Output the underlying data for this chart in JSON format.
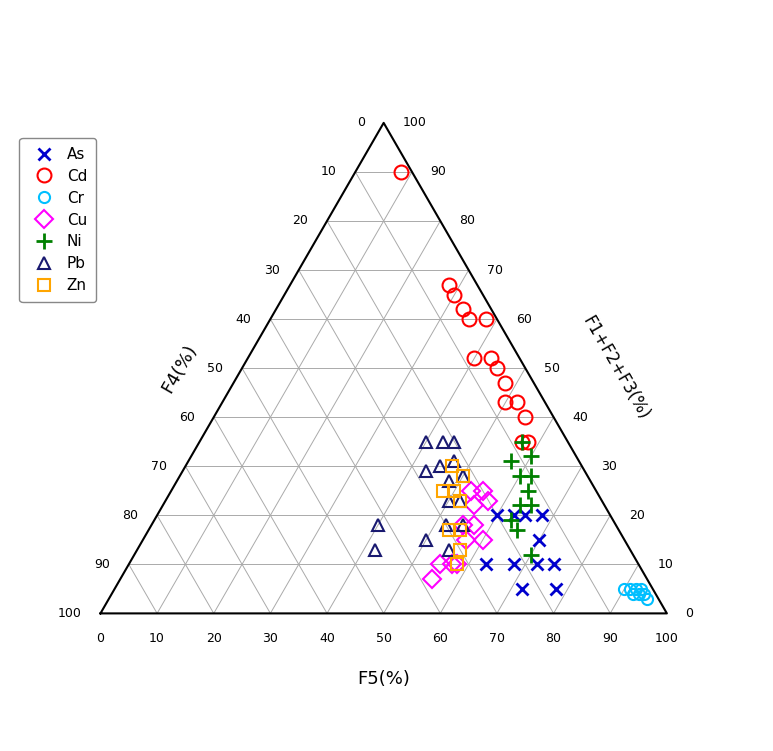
{
  "axes_labels": {
    "bottom": "F5(%)",
    "left": "F4(%)",
    "right": "F1+F2+F3(%)"
  },
  "metals": {
    "As": {
      "color": "#0000CD",
      "marker": "x",
      "markersize": 9,
      "linewidth": 2.0,
      "data": [
        [
          60,
          20,
          20
        ],
        [
          63,
          17,
          20
        ],
        [
          65,
          15,
          20
        ],
        [
          68,
          12,
          20
        ],
        [
          70,
          15,
          15
        ],
        [
          72,
          18,
          10
        ],
        [
          75,
          15,
          10
        ],
        [
          63,
          27,
          10
        ],
        [
          68,
          22,
          10
        ],
        [
          72,
          23,
          5
        ],
        [
          78,
          17,
          5
        ]
      ]
    },
    "Cd": {
      "color": "#FF0000",
      "marker": "o",
      "markersize": 10,
      "linewidth": 1.5,
      "data": [
        [
          8,
          2,
          90
        ],
        [
          28,
          5,
          67
        ],
        [
          30,
          5,
          65
        ],
        [
          33,
          5,
          62
        ],
        [
          35,
          5,
          60
        ],
        [
          38,
          2,
          60
        ],
        [
          40,
          8,
          52
        ],
        [
          43,
          5,
          52
        ],
        [
          45,
          5,
          50
        ],
        [
          48,
          5,
          47
        ],
        [
          50,
          7,
          43
        ],
        [
          52,
          5,
          43
        ],
        [
          55,
          5,
          40
        ],
        [
          57,
          8,
          35
        ],
        [
          58,
          7,
          35
        ]
      ]
    },
    "Cr": {
      "color": "#00BFFF",
      "marker": "o",
      "markersize": 8,
      "linewidth": 1.5,
      "data": [
        [
          90,
          5,
          5
        ],
        [
          91,
          4,
          5
        ],
        [
          92,
          3,
          5
        ],
        [
          92,
          4,
          4
        ],
        [
          93,
          3,
          4
        ],
        [
          93,
          2,
          5
        ],
        [
          94,
          2,
          4
        ],
        [
          95,
          2,
          3
        ]
      ]
    },
    "Cu": {
      "color": "#FF00FF",
      "marker": "D",
      "markersize": 9,
      "linewidth": 1.5,
      "data": [
        [
          53,
          22,
          25
        ],
        [
          55,
          20,
          25
        ],
        [
          55,
          23,
          22
        ],
        [
          57,
          20,
          23
        ],
        [
          55,
          27,
          18
        ],
        [
          57,
          25,
          18
        ],
        [
          57,
          28,
          15
        ],
        [
          60,
          25,
          15
        ],
        [
          55,
          35,
          10
        ],
        [
          57,
          33,
          10
        ],
        [
          58,
          32,
          10
        ],
        [
          55,
          38,
          7
        ]
      ]
    },
    "Ni": {
      "color": "#008000",
      "marker": "+",
      "markersize": 12,
      "linewidth": 2.0,
      "data": [
        [
          57,
          8,
          35
        ],
        [
          60,
          8,
          32
        ],
        [
          57,
          12,
          31
        ],
        [
          60,
          12,
          28
        ],
        [
          62,
          10,
          28
        ],
        [
          63,
          12,
          25
        ],
        [
          63,
          15,
          22
        ],
        [
          65,
          13,
          22
        ],
        [
          63,
          18,
          19
        ],
        [
          65,
          18,
          17
        ],
        [
          70,
          18,
          12
        ]
      ]
    },
    "Pb": {
      "color": "#191970",
      "marker": "^",
      "markersize": 9,
      "linewidth": 1.5,
      "data": [
        [
          40,
          25,
          35
        ],
        [
          43,
          22,
          35
        ],
        [
          45,
          20,
          35
        ],
        [
          43,
          28,
          29
        ],
        [
          45,
          25,
          30
        ],
        [
          47,
          22,
          31
        ],
        [
          48,
          25,
          27
        ],
        [
          50,
          22,
          28
        ],
        [
          50,
          27,
          23
        ],
        [
          52,
          25,
          23
        ],
        [
          52,
          30,
          18
        ],
        [
          55,
          27,
          18
        ],
        [
          50,
          35,
          15
        ],
        [
          55,
          32,
          13
        ],
        [
          40,
          42,
          18
        ],
        [
          42,
          45,
          13
        ]
      ]
    },
    "Zn": {
      "color": "#FFA500",
      "marker": "s",
      "markersize": 9,
      "linewidth": 1.5,
      "data": [
        [
          47,
          23,
          30
        ],
        [
          48,
          27,
          25
        ],
        [
          50,
          25,
          25
        ],
        [
          50,
          22,
          28
        ],
        [
          52,
          25,
          23
        ],
        [
          53,
          30,
          17
        ],
        [
          55,
          28,
          17
        ],
        [
          57,
          30,
          13
        ],
        [
          58,
          32,
          10
        ]
      ]
    }
  },
  "tick_values": [
    0,
    10,
    20,
    30,
    40,
    50,
    60,
    70,
    80,
    90,
    100
  ],
  "grid_color": "#AAAAAA",
  "figsize": [
    7.73,
    7.51
  ],
  "dpi": 100
}
